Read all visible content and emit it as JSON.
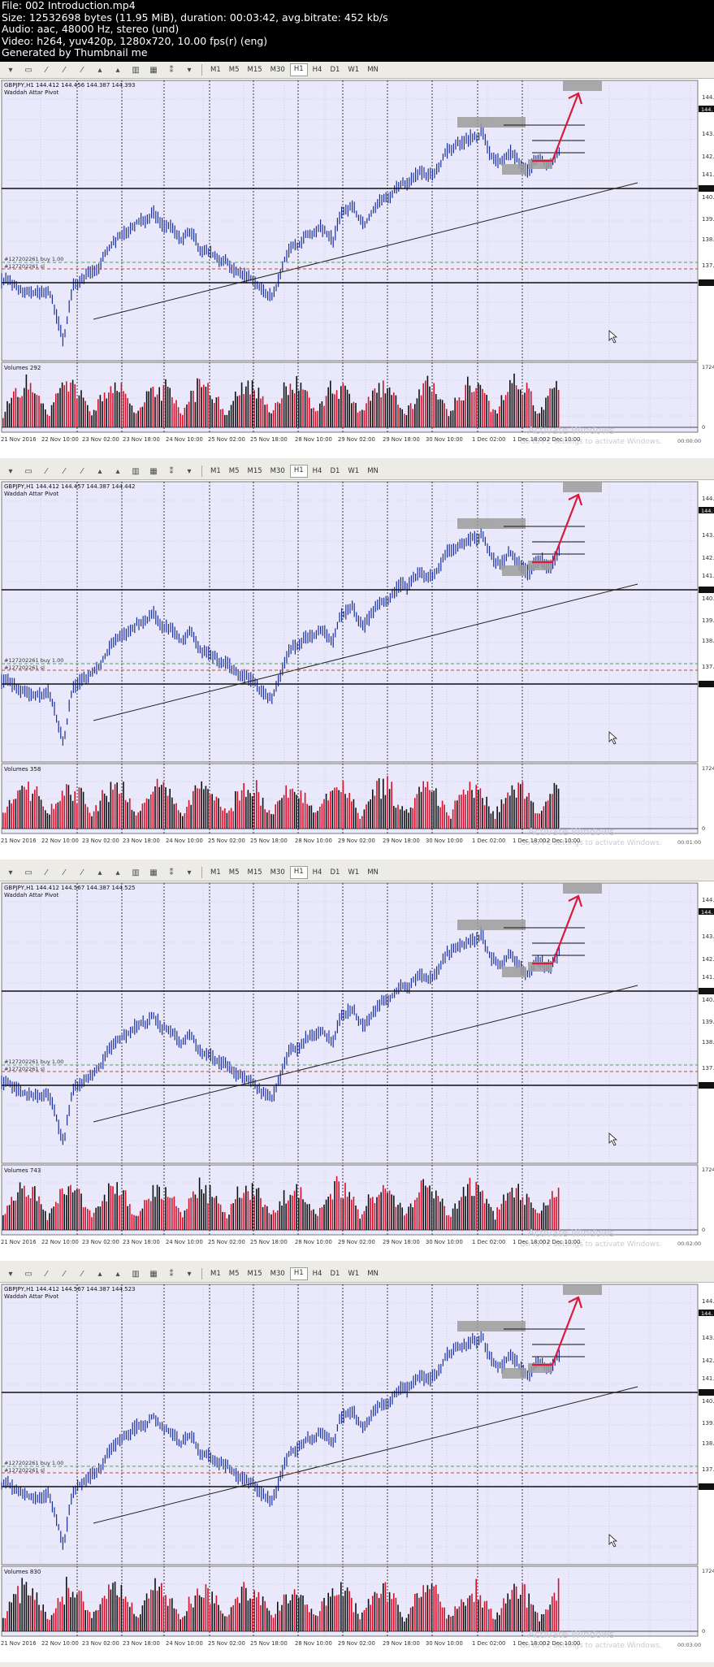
{
  "file_info": [
    "File: 002 Introduction.mp4",
    "Size: 12532698 bytes (11.95 MiB), duration: 00:03:42, avg.bitrate: 452 kb/s",
    "Audio: aac, 48000 Hz, stereo (und)",
    "Video: h264, yuv420p, 1280x720, 10.00 fps(r) (eng)",
    "Generated by Thumbnail me"
  ],
  "toolbar": {
    "timeframes": [
      "M1",
      "M5",
      "M15",
      "M30",
      "H1",
      "H4",
      "D1",
      "W1",
      "MN"
    ],
    "active": "H1",
    "icons": [
      "cursor-icon",
      "crosshair-icon",
      "vertical-line-icon",
      "horizontal-line-icon",
      "trendline-icon",
      "channel-icon",
      "fibonacci-icon",
      "text-icon",
      "arrow-icon",
      "grid-icon",
      "tools-dropdown-icon"
    ]
  },
  "chart": {
    "indicator": "Waddah Attar Pivot",
    "order_buy": "#127202261 buy 1.00",
    "order_sl": "#127202261 sl",
    "price_labels": [
      "144.",
      "143.",
      "142.",
      "141.",
      "140.",
      "139.",
      "138.",
      "137."
    ],
    "volume_scale_max": "1724",
    "volume_scale_min": "0",
    "dates": [
      "21 Nov 2016",
      "22 Nov 10:00",
      "23 Nov 02:00",
      "23 Nov 18:00",
      "24 Nov 10:00",
      "25 Nov 02:00",
      "25 Nov 18:00",
      "28 Nov 10:00",
      "29 Nov 02:00",
      "29 Nov 18:00",
      "30 Nov 10:00",
      "1 Dec 02:00",
      "1 Dec 18:00",
      "2 Dec 10:00"
    ],
    "watermark": "Activate Windows",
    "watermark_sub": "Go to PC settings to activate Windows.",
    "colors": {
      "background": "#e9e9fb",
      "candles": "#1b2f9e",
      "vol_up": "#d6102a",
      "vol_down": "#111111",
      "arrow": "#d81b3c",
      "order_line": "#c8452b",
      "zone": "#9c9c9c"
    }
  },
  "frames": [
    {
      "symbol_line": "GBPJPY,H1  144.412 144.456 144.387 144.393",
      "volumes_label": "Volumes 292",
      "price_tag": "144.",
      "timestamp": "00:00:00"
    },
    {
      "symbol_line": "GBPJPY,H1  144.412 144.457 144.387 144.442",
      "volumes_label": "Volumes 358",
      "price_tag": "144.",
      "timestamp": "00:01:00"
    },
    {
      "symbol_line": "GBPJPY,H1  144.412 144.567 144.387 144.525",
      "volumes_label": "Volumes 743",
      "price_tag": "144.",
      "timestamp": "00:02:00"
    },
    {
      "symbol_line": "GBPJPY,H1  144.412 144.567 144.387 144.523",
      "volumes_label": "Volumes 830",
      "price_tag": "144.",
      "timestamp": "00:03:00"
    }
  ]
}
